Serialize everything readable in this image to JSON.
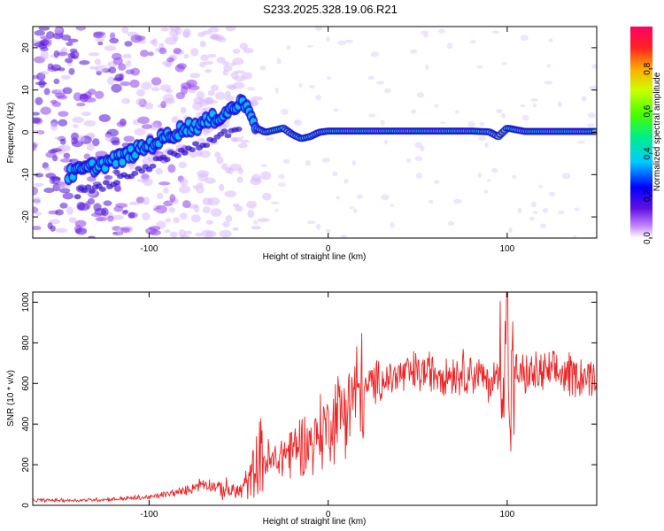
{
  "title": "S233.2025.328.19.06.R21",
  "colors": {
    "spectrogram_ridge": "#ff3030",
    "snr_line": "#ee2222",
    "axis": "#000000"
  },
  "chart_data": [
    {
      "type": "heatmap",
      "title": "S233.2025.328.19.06.R21",
      "xlabel": "Height of straight line (km)",
      "ylabel": "Frequency (Hz)",
      "xlim": [
        -165,
        150
      ],
      "ylim": [
        -25,
        25
      ],
      "xticks": [
        -100,
        0,
        100
      ],
      "xtick_labels": [
        "-100",
        "0",
        "100"
      ],
      "yticks": [
        -20,
        -10,
        0,
        10,
        20
      ],
      "ytick_labels": [
        "-20",
        "-10",
        "0",
        "10",
        "20"
      ],
      "colorbar": {
        "label": "Normalized spectral amplitude",
        "range": [
          0,
          1
        ],
        "ticks": [
          0.0,
          0.2,
          0.4,
          0.6,
          0.8
        ],
        "tick_labels": [
          "0.0",
          "0.2",
          "0.4",
          "0.6",
          "0.8"
        ]
      },
      "ridge": {
        "description": "peak spectral amplitude frequency vs height",
        "x": [
          -145,
          -130,
          -115,
          -100,
          -90,
          -80,
          -70,
          -60,
          -52,
          -48,
          -44,
          -40,
          -35,
          -30,
          -25,
          -20,
          -15,
          -10,
          -5,
          0,
          20,
          40,
          60,
          80,
          85,
          90,
          95,
          100,
          110,
          130,
          150
        ],
        "y": [
          -10,
          -8,
          -6,
          -3,
          -1,
          1,
          2,
          4,
          6,
          7,
          6,
          1,
          0,
          0.5,
          1,
          -0.5,
          -1.5,
          -1,
          0,
          0.3,
          0.3,
          0.3,
          0.3,
          0.3,
          0.2,
          0.1,
          -1,
          1,
          0.2,
          0.2,
          0.2
        ]
      }
    },
    {
      "type": "line",
      "xlabel": "Height of straight line (km)",
      "ylabel": "SNR (10 * v/v)",
      "xlim": [
        -165,
        150
      ],
      "ylim": [
        0,
        1050
      ],
      "xticks": [
        -100,
        0,
        100
      ],
      "xtick_labels": [
        "-100",
        "0",
        "100"
      ],
      "yticks": [
        0,
        200,
        400,
        600,
        800,
        1000
      ],
      "ytick_labels": [
        "0",
        "200",
        "400",
        "600",
        "800",
        "1000"
      ],
      "series": [
        {
          "name": "SNR",
          "x": [
            -165,
            -140,
            -120,
            -100,
            -90,
            -80,
            -70,
            -60,
            -50,
            -45,
            -40,
            -38,
            -35,
            -30,
            -25,
            -20,
            -15,
            -10,
            -5,
            0,
            5,
            10,
            15,
            20,
            25,
            30,
            40,
            50,
            60,
            70,
            80,
            85,
            90,
            95,
            98,
            100,
            101,
            103,
            105,
            110,
            120,
            130,
            140,
            150
          ],
          "y": [
            25,
            25,
            30,
            40,
            55,
            70,
            110,
            85,
            65,
            110,
            200,
            250,
            220,
            210,
            250,
            280,
            300,
            310,
            350,
            400,
            450,
            500,
            540,
            570,
            600,
            620,
            640,
            650,
            660,
            650,
            660,
            640,
            600,
            640,
            720,
            740,
            380,
            600,
            650,
            640,
            650,
            650,
            640,
            630
          ]
        }
      ]
    }
  ]
}
